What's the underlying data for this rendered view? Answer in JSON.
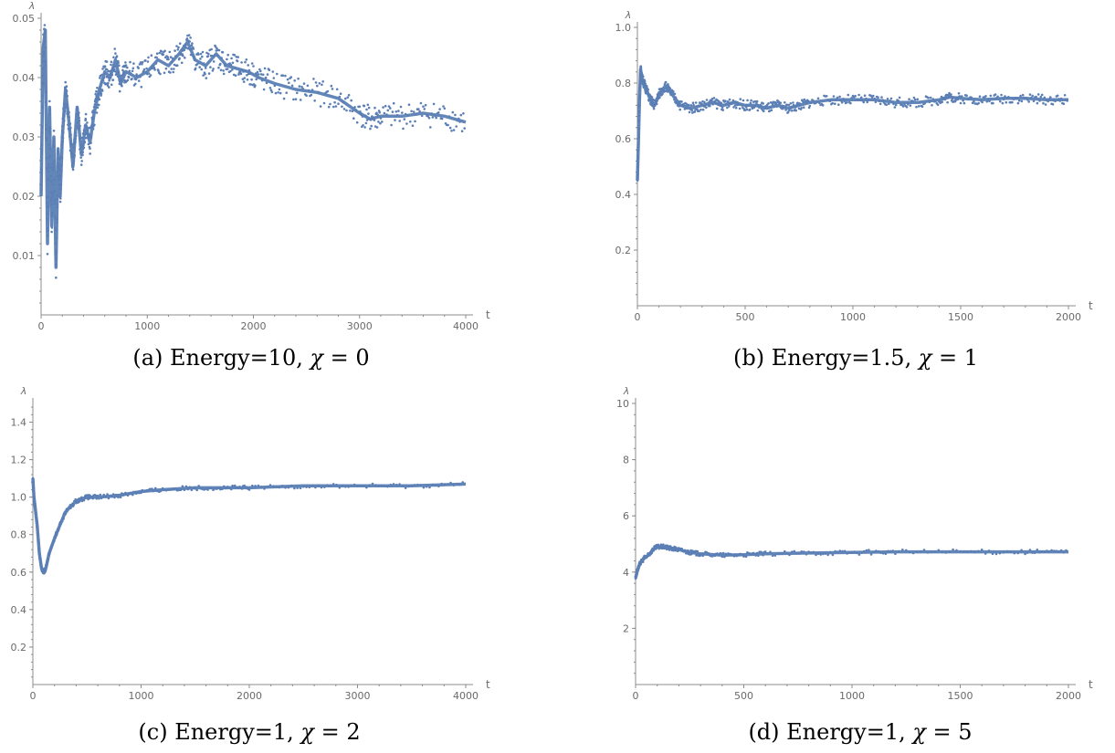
{
  "style": {
    "series_color": "#5b7fb5",
    "axis_color": "#8c8c8c",
    "tick_text_color": "#6a6a6a"
  },
  "panels": [
    {
      "caption": {
        "prefix": "(a) Energy=10, ",
        "sym": "χ",
        "rest": " = 0"
      },
      "chart_data": {
        "type": "scatter",
        "ylabel": "λ",
        "xlabel": "t",
        "xlim": [
          0,
          4000
        ],
        "ylim": [
          0,
          0.05
        ],
        "xticks": [
          0,
          1000,
          2000,
          3000,
          4000
        ],
        "xtick_labels": [
          "0",
          "1000",
          "2000",
          "3000",
          "4000"
        ],
        "yticks": [
          0.01,
          0.02,
          0.03,
          0.04,
          0.05
        ],
        "ytick_labels": [
          "0.01",
          "0.02",
          "0.03",
          "0.04",
          "0.05"
        ],
        "grid": false,
        "series": [
          {
            "x": [
              0,
              20,
              40,
              60,
              80,
              100,
              120,
              140,
              160,
              180,
              200,
              230,
              260,
              300,
              340,
              380,
              420,
              460,
              500,
              550,
              600,
              650,
              700,
              750,
              800,
              900,
              1000,
              1100,
              1200,
              1300,
              1380,
              1450,
              1550,
              1650,
              1750,
              1850,
              1950,
              2050,
              2200,
              2400,
              2600,
              2800,
              3000,
              3100,
              3200,
              3400,
              3600,
              3800,
              4000
            ],
            "y": [
              0.02,
              0.045,
              0.048,
              0.012,
              0.035,
              0.015,
              0.03,
              0.008,
              0.028,
              0.02,
              0.03,
              0.038,
              0.033,
              0.025,
              0.035,
              0.027,
              0.032,
              0.029,
              0.034,
              0.038,
              0.041,
              0.04,
              0.043,
              0.039,
              0.041,
              0.04,
              0.041,
              0.043,
              0.042,
              0.044,
              0.046,
              0.043,
              0.042,
              0.044,
              0.042,
              0.0415,
              0.041,
              0.04,
              0.039,
              0.038,
              0.0375,
              0.0365,
              0.034,
              0.033,
              0.0335,
              0.0335,
              0.034,
              0.0335,
              0.0325
            ]
          }
        ]
      }
    },
    {
      "caption": {
        "prefix": "(b) Energy=1.5, ",
        "sym": "χ",
        "rest": " = 1"
      },
      "chart_data": {
        "type": "scatter",
        "ylabel": "λ",
        "xlabel": "t",
        "xlim": [
          0,
          2000
        ],
        "ylim": [
          0,
          1.0
        ],
        "xticks": [
          0,
          500,
          1000,
          1500,
          2000
        ],
        "xtick_labels": [
          "0",
          "500",
          "1000",
          "1500",
          "2000"
        ],
        "yticks": [
          0.2,
          0.4,
          0.6,
          0.8,
          1.0
        ],
        "ytick_labels": [
          "0.2",
          "0.4",
          "0.6",
          "0.8",
          "1.0"
        ],
        "grid": false,
        "series": [
          {
            "x": [
              0,
              5,
              10,
              15,
              20,
              30,
              40,
              60,
              80,
              100,
              130,
              160,
              200,
              250,
              300,
              350,
              400,
              450,
              500,
              550,
              600,
              650,
              700,
              750,
              800,
              900,
              1000,
              1100,
              1200,
              1300,
              1400,
              1450,
              1500,
              1600,
              1700,
              1800,
              1900,
              2000
            ],
            "y": [
              0.45,
              0.6,
              0.75,
              0.85,
              0.82,
              0.8,
              0.78,
              0.74,
              0.72,
              0.76,
              0.79,
              0.76,
              0.72,
              0.71,
              0.72,
              0.73,
              0.72,
              0.73,
              0.72,
              0.72,
              0.71,
              0.72,
              0.71,
              0.72,
              0.73,
              0.74,
              0.74,
              0.74,
              0.73,
              0.73,
              0.74,
              0.75,
              0.745,
              0.74,
              0.745,
              0.745,
              0.74,
              0.74
            ]
          }
        ]
      }
    },
    {
      "caption": {
        "prefix": "(c) Energy=1, ",
        "sym": "χ",
        "rest": " = 2"
      },
      "chart_data": {
        "type": "scatter",
        "ylabel": "λ",
        "xlabel": "t",
        "xlim": [
          0,
          4000
        ],
        "ylim": [
          0,
          1.5
        ],
        "xticks": [
          0,
          1000,
          2000,
          3000,
          4000
        ],
        "xtick_labels": [
          "0",
          "1000",
          "2000",
          "3000",
          "4000"
        ],
        "yticks": [
          0.2,
          0.4,
          0.6,
          0.8,
          1.0,
          1.2,
          1.4
        ],
        "ytick_labels": [
          "0.2",
          "0.4",
          "0.6",
          "0.8",
          "1.0",
          "1.2",
          "1.4"
        ],
        "grid": false,
        "series": [
          {
            "x": [
              0,
              10,
              20,
              40,
              60,
              80,
              100,
              120,
              150,
              200,
              250,
              300,
              400,
              500,
              600,
              800,
              1000,
              1200,
              1500,
              1800,
              2000,
              2500,
              3000,
              3500,
              4000
            ],
            "y": [
              1.1,
              1.0,
              0.95,
              0.85,
              0.7,
              0.62,
              0.6,
              0.62,
              0.7,
              0.78,
              0.85,
              0.92,
              0.98,
              1.0,
              1.0,
              1.01,
              1.03,
              1.04,
              1.05,
              1.05,
              1.05,
              1.06,
              1.06,
              1.06,
              1.07
            ]
          }
        ]
      }
    },
    {
      "caption": {
        "prefix": "(d) Energy=1, ",
        "sym": "χ",
        "rest": " = 5"
      },
      "chart_data": {
        "type": "scatter",
        "ylabel": "λ",
        "xlabel": "t",
        "xlim": [
          0,
          2000
        ],
        "ylim": [
          0,
          10
        ],
        "xticks": [
          0,
          500,
          1000,
          1500,
          2000
        ],
        "xtick_labels": [
          "0",
          "500",
          "1000",
          "1500",
          "2000"
        ],
        "yticks": [
          2,
          4,
          6,
          8,
          10
        ],
        "ytick_labels": [
          "2",
          "4",
          "6",
          "8",
          "10"
        ],
        "grid": false,
        "series": [
          {
            "x": [
              0,
              10,
              20,
              40,
              60,
              80,
              100,
              130,
              160,
              200,
              250,
              300,
              400,
              500,
              600,
              800,
              1000,
              1200,
              1500,
              1800,
              2000
            ],
            "y": [
              3.8,
              4.1,
              4.3,
              4.5,
              4.6,
              4.8,
              4.9,
              4.9,
              4.85,
              4.8,
              4.7,
              4.65,
              4.6,
              4.62,
              4.65,
              4.68,
              4.7,
              4.72,
              4.72,
              4.72,
              4.72
            ]
          }
        ]
      }
    }
  ]
}
